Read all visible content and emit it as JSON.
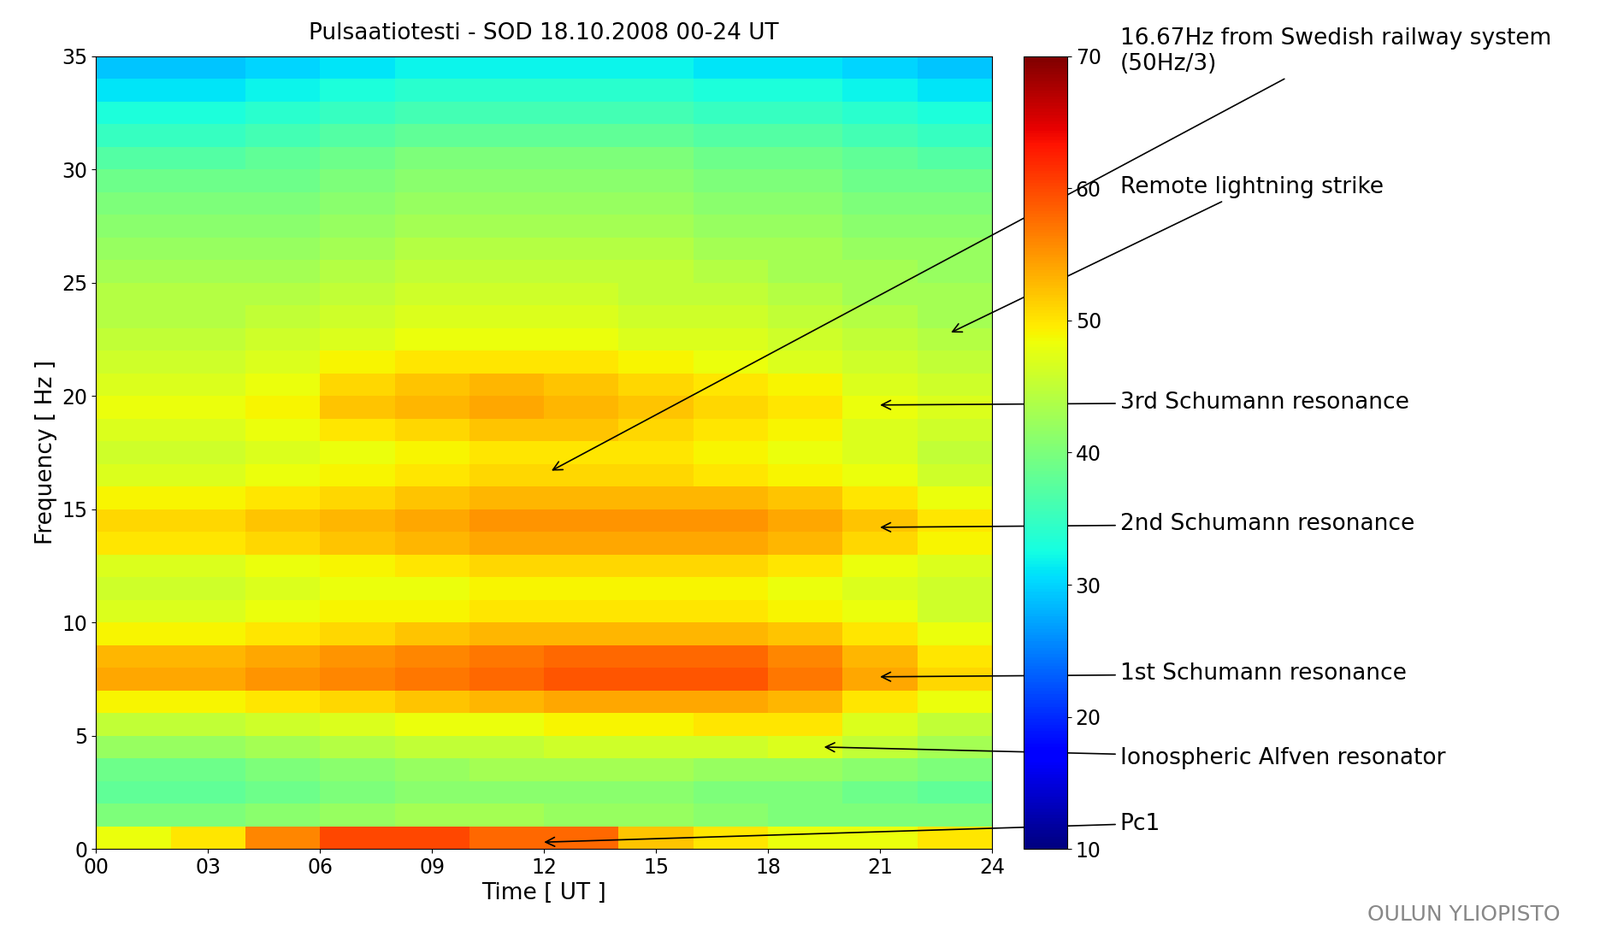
{
  "chart_data": {
    "type": "heatmap",
    "title": "Pulsaatiotesti - SOD 18.10.2008 00-24 UT",
    "x_label": "Time [ UT ]",
    "y_label": "Frequency [ Hz ]",
    "xlim": [
      0,
      24
    ],
    "ylim": [
      0,
      35
    ],
    "xticks": [
      {
        "value": 0,
        "label": "00"
      },
      {
        "value": 3,
        "label": "03"
      },
      {
        "value": 6,
        "label": "06"
      },
      {
        "value": 9,
        "label": "09"
      },
      12,
      15,
      18,
      21,
      24
    ],
    "yticks": [
      0,
      5,
      10,
      15,
      20,
      25,
      30,
      35
    ],
    "x": [
      0,
      2,
      4,
      6,
      8,
      10,
      12,
      14,
      16,
      18,
      20,
      22,
      24
    ],
    "y": [
      0,
      1,
      2,
      3,
      4,
      5,
      6,
      7,
      8,
      9,
      10,
      11,
      12,
      13,
      14,
      15,
      16,
      17,
      18,
      19,
      20,
      21,
      22,
      23,
      24,
      25,
      26,
      27,
      28,
      29,
      30,
      31,
      32,
      33,
      34,
      35
    ],
    "cells": [
      [
        48,
        50,
        56,
        60,
        60,
        58,
        58,
        52,
        50,
        48,
        48,
        50
      ],
      [
        40,
        40,
        41,
        42,
        43,
        43,
        42,
        42,
        41,
        40,
        40,
        40
      ],
      [
        38,
        38,
        39,
        40,
        41,
        41,
        41,
        41,
        40,
        40,
        39,
        38
      ],
      [
        39,
        39,
        40,
        41,
        42,
        43,
        43,
        43,
        42,
        42,
        41,
        40
      ],
      [
        42,
        42,
        43,
        44,
        45,
        45,
        46,
        46,
        46,
        47,
        45,
        43
      ],
      [
        45,
        45,
        46,
        47,
        48,
        48,
        49,
        49,
        50,
        50,
        47,
        45
      ],
      [
        49,
        49,
        50,
        51,
        52,
        53,
        54,
        54,
        54,
        53,
        50,
        48
      ],
      [
        54,
        54,
        55,
        56,
        57,
        58,
        59,
        59,
        59,
        57,
        54,
        51
      ],
      [
        53,
        53,
        54,
        55,
        56,
        57,
        58,
        58,
        58,
        56,
        53,
        50
      ],
      [
        49,
        49,
        50,
        51,
        52,
        53,
        53,
        53,
        53,
        52,
        50,
        48
      ],
      [
        47,
        47,
        48,
        49,
        49,
        50,
        50,
        50,
        50,
        49,
        48,
        46
      ],
      [
        46,
        46,
        47,
        48,
        48,
        49,
        49,
        49,
        49,
        48,
        47,
        46
      ],
      [
        47,
        47,
        48,
        49,
        50,
        51,
        51,
        51,
        51,
        50,
        48,
        47
      ],
      [
        50,
        50,
        51,
        52,
        53,
        54,
        54,
        54,
        54,
        53,
        51,
        49
      ],
      [
        51,
        51,
        52,
        53,
        54,
        55,
        55,
        55,
        55,
        54,
        52,
        50
      ],
      [
        49,
        49,
        50,
        51,
        52,
        53,
        53,
        53,
        53,
        52,
        50,
        48
      ],
      [
        47,
        47,
        48,
        49,
        50,
        51,
        51,
        51,
        50,
        49,
        48,
        46
      ],
      [
        46,
        46,
        47,
        48,
        49,
        50,
        50,
        50,
        49,
        48,
        47,
        45
      ],
      [
        47,
        47,
        48,
        50,
        51,
        52,
        52,
        51,
        50,
        49,
        47,
        46
      ],
      [
        48,
        48,
        49,
        52,
        53,
        54,
        53,
        52,
        51,
        50,
        48,
        47
      ],
      [
        47,
        47,
        48,
        51,
        52,
        53,
        52,
        51,
        50,
        49,
        47,
        46
      ],
      [
        46,
        46,
        47,
        49,
        50,
        50,
        50,
        49,
        48,
        47,
        46,
        45
      ],
      [
        45,
        45,
        46,
        47,
        48,
        48,
        48,
        47,
        47,
        46,
        45,
        44
      ],
      [
        44,
        44,
        45,
        46,
        47,
        47,
        47,
        46,
        46,
        45,
        44,
        43
      ],
      [
        44,
        44,
        44,
        45,
        46,
        46,
        46,
        45,
        45,
        44,
        43,
        43
      ],
      [
        43,
        43,
        43,
        44,
        45,
        45,
        45,
        45,
        44,
        43,
        43,
        42
      ],
      [
        42,
        42,
        42,
        43,
        44,
        44,
        44,
        44,
        43,
        43,
        42,
        42
      ],
      [
        41,
        41,
        41,
        42,
        43,
        43,
        43,
        43,
        42,
        42,
        41,
        41
      ],
      [
        40,
        40,
        40,
        41,
        42,
        42,
        42,
        42,
        41,
        41,
        40,
        40
      ],
      [
        39,
        39,
        39,
        40,
        41,
        41,
        41,
        41,
        40,
        40,
        39,
        39
      ],
      [
        37,
        37,
        38,
        39,
        40,
        40,
        40,
        40,
        39,
        39,
        38,
        37
      ],
      [
        35,
        35,
        36,
        37,
        38,
        38,
        38,
        38,
        37,
        37,
        36,
        35
      ],
      [
        33,
        33,
        34,
        35,
        36,
        36,
        36,
        36,
        35,
        35,
        34,
        33
      ],
      [
        31,
        31,
        32,
        33,
        34,
        34,
        34,
        34,
        33,
        33,
        32,
        31
      ],
      [
        29,
        29,
        30,
        31,
        32,
        32,
        32,
        32,
        31,
        31,
        30,
        29
      ]
    ],
    "colorbar_range": [
      10,
      70
    ],
    "colorbar_ticks": [
      10,
      20,
      30,
      40,
      50,
      60,
      70
    ],
    "annotations": [
      {
        "text": "16.67Hz from Swedish railway system (50Hz/3)",
        "xy": [
          12.2,
          16.7
        ]
      },
      {
        "text": "Remote lightning strike",
        "xy": [
          22.9,
          22.8
        ]
      },
      {
        "text": "3rd Schumann resonance",
        "xy": [
          21,
          19.6
        ]
      },
      {
        "text": "2nd Schumann resonance",
        "xy": [
          21,
          14.2
        ]
      },
      {
        "text": "1st Schumann resonance",
        "xy": [
          21,
          7.6
        ]
      },
      {
        "text": "Ionospheric Alfven resonator",
        "xy": [
          19.5,
          4.5
        ]
      },
      {
        "text": "Pc1",
        "xy": [
          12,
          0.3
        ]
      }
    ],
    "footer": "OULUN YLIOPISTO"
  }
}
